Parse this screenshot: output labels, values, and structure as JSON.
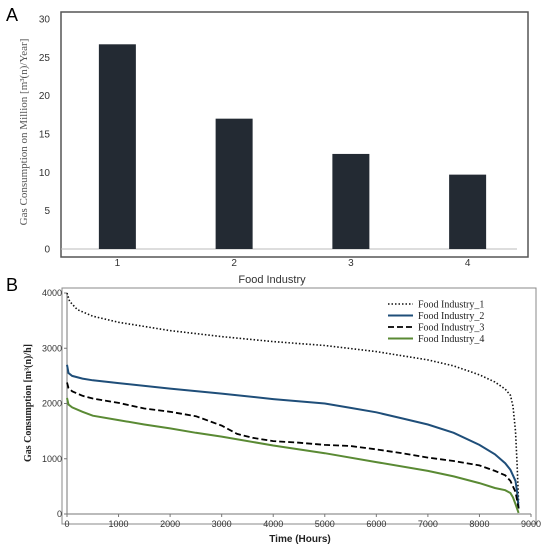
{
  "chart_data": [
    {
      "panel_label": "A",
      "type": "bar",
      "categories": [
        "1",
        "2",
        "3",
        "4"
      ],
      "values": [
        26.7,
        17.0,
        12.4,
        9.7
      ],
      "xlabel": "Food Industry",
      "ylabel": "Gas Consumption on Million [m³(n)/Year]",
      "ylim": [
        0,
        30
      ],
      "yticks": [
        "0",
        "5",
        "10",
        "15",
        "20",
        "25",
        "30"
      ],
      "grid": false,
      "bar_color": "#232a33"
    },
    {
      "panel_label": "B",
      "type": "line",
      "xlabel": "Time (Hours)",
      "ylabel": "Gas Consumption [m³(n)/h]",
      "xlim": [
        0,
        9000
      ],
      "ylim": [
        0,
        4000
      ],
      "xticks": [
        "0",
        "1000",
        "2000",
        "3000",
        "4000",
        "5000",
        "6000",
        "7000",
        "8000",
        "9000"
      ],
      "yticks": [
        "0",
        "1000",
        "2000",
        "3000",
        "4000"
      ],
      "legend_position": "top-right",
      "grid": false,
      "series": [
        {
          "name": "Food Industry_1",
          "color": "#111111",
          "style": "dotted",
          "x": [
            0,
            50,
            200,
            500,
            1000,
            2000,
            3000,
            4000,
            5000,
            6000,
            7000,
            7500,
            8000,
            8300,
            8500,
            8600,
            8650,
            8700,
            8730,
            8760
          ],
          "y": [
            4000,
            3850,
            3700,
            3580,
            3470,
            3320,
            3210,
            3120,
            3050,
            2940,
            2790,
            2680,
            2520,
            2390,
            2260,
            2150,
            1950,
            1500,
            900,
            200
          ]
        },
        {
          "name": "Food Industry_2",
          "color": "#1f4e79",
          "style": "solid",
          "x": [
            0,
            30,
            100,
            300,
            500,
            1000,
            2000,
            3000,
            4000,
            5000,
            5500,
            6000,
            6500,
            7000,
            7500,
            8000,
            8300,
            8500,
            8600,
            8700,
            8730,
            8760
          ],
          "y": [
            2700,
            2550,
            2500,
            2450,
            2420,
            2370,
            2270,
            2180,
            2080,
            2000,
            1920,
            1840,
            1730,
            1620,
            1470,
            1250,
            1080,
            920,
            800,
            600,
            400,
            100
          ]
        },
        {
          "name": "Food Industry_3",
          "color": "#000000",
          "style": "dashed",
          "x": [
            0,
            30,
            100,
            300,
            500,
            1000,
            1500,
            2000,
            2500,
            3000,
            3300,
            3600,
            4000,
            4500,
            5000,
            5500,
            6000,
            6500,
            7000,
            7500,
            8000,
            8300,
            8500,
            8600,
            8700,
            8760
          ],
          "y": [
            2380,
            2280,
            2220,
            2140,
            2090,
            2010,
            1910,
            1850,
            1770,
            1600,
            1450,
            1380,
            1320,
            1290,
            1250,
            1230,
            1170,
            1100,
            1020,
            960,
            880,
            780,
            700,
            600,
            400,
            100
          ]
        },
        {
          "name": "Food Industry_4",
          "color": "#5a8a34",
          "style": "solid",
          "x": [
            0,
            30,
            100,
            300,
            500,
            1000,
            1500,
            2000,
            2500,
            3000,
            4000,
            5000,
            6000,
            7000,
            7500,
            8000,
            8300,
            8500,
            8600,
            8650,
            8700,
            8760
          ],
          "y": [
            2100,
            1980,
            1930,
            1850,
            1780,
            1700,
            1620,
            1550,
            1470,
            1400,
            1240,
            1100,
            940,
            780,
            680,
            560,
            470,
            430,
            380,
            300,
            180,
            20
          ]
        }
      ]
    }
  ]
}
